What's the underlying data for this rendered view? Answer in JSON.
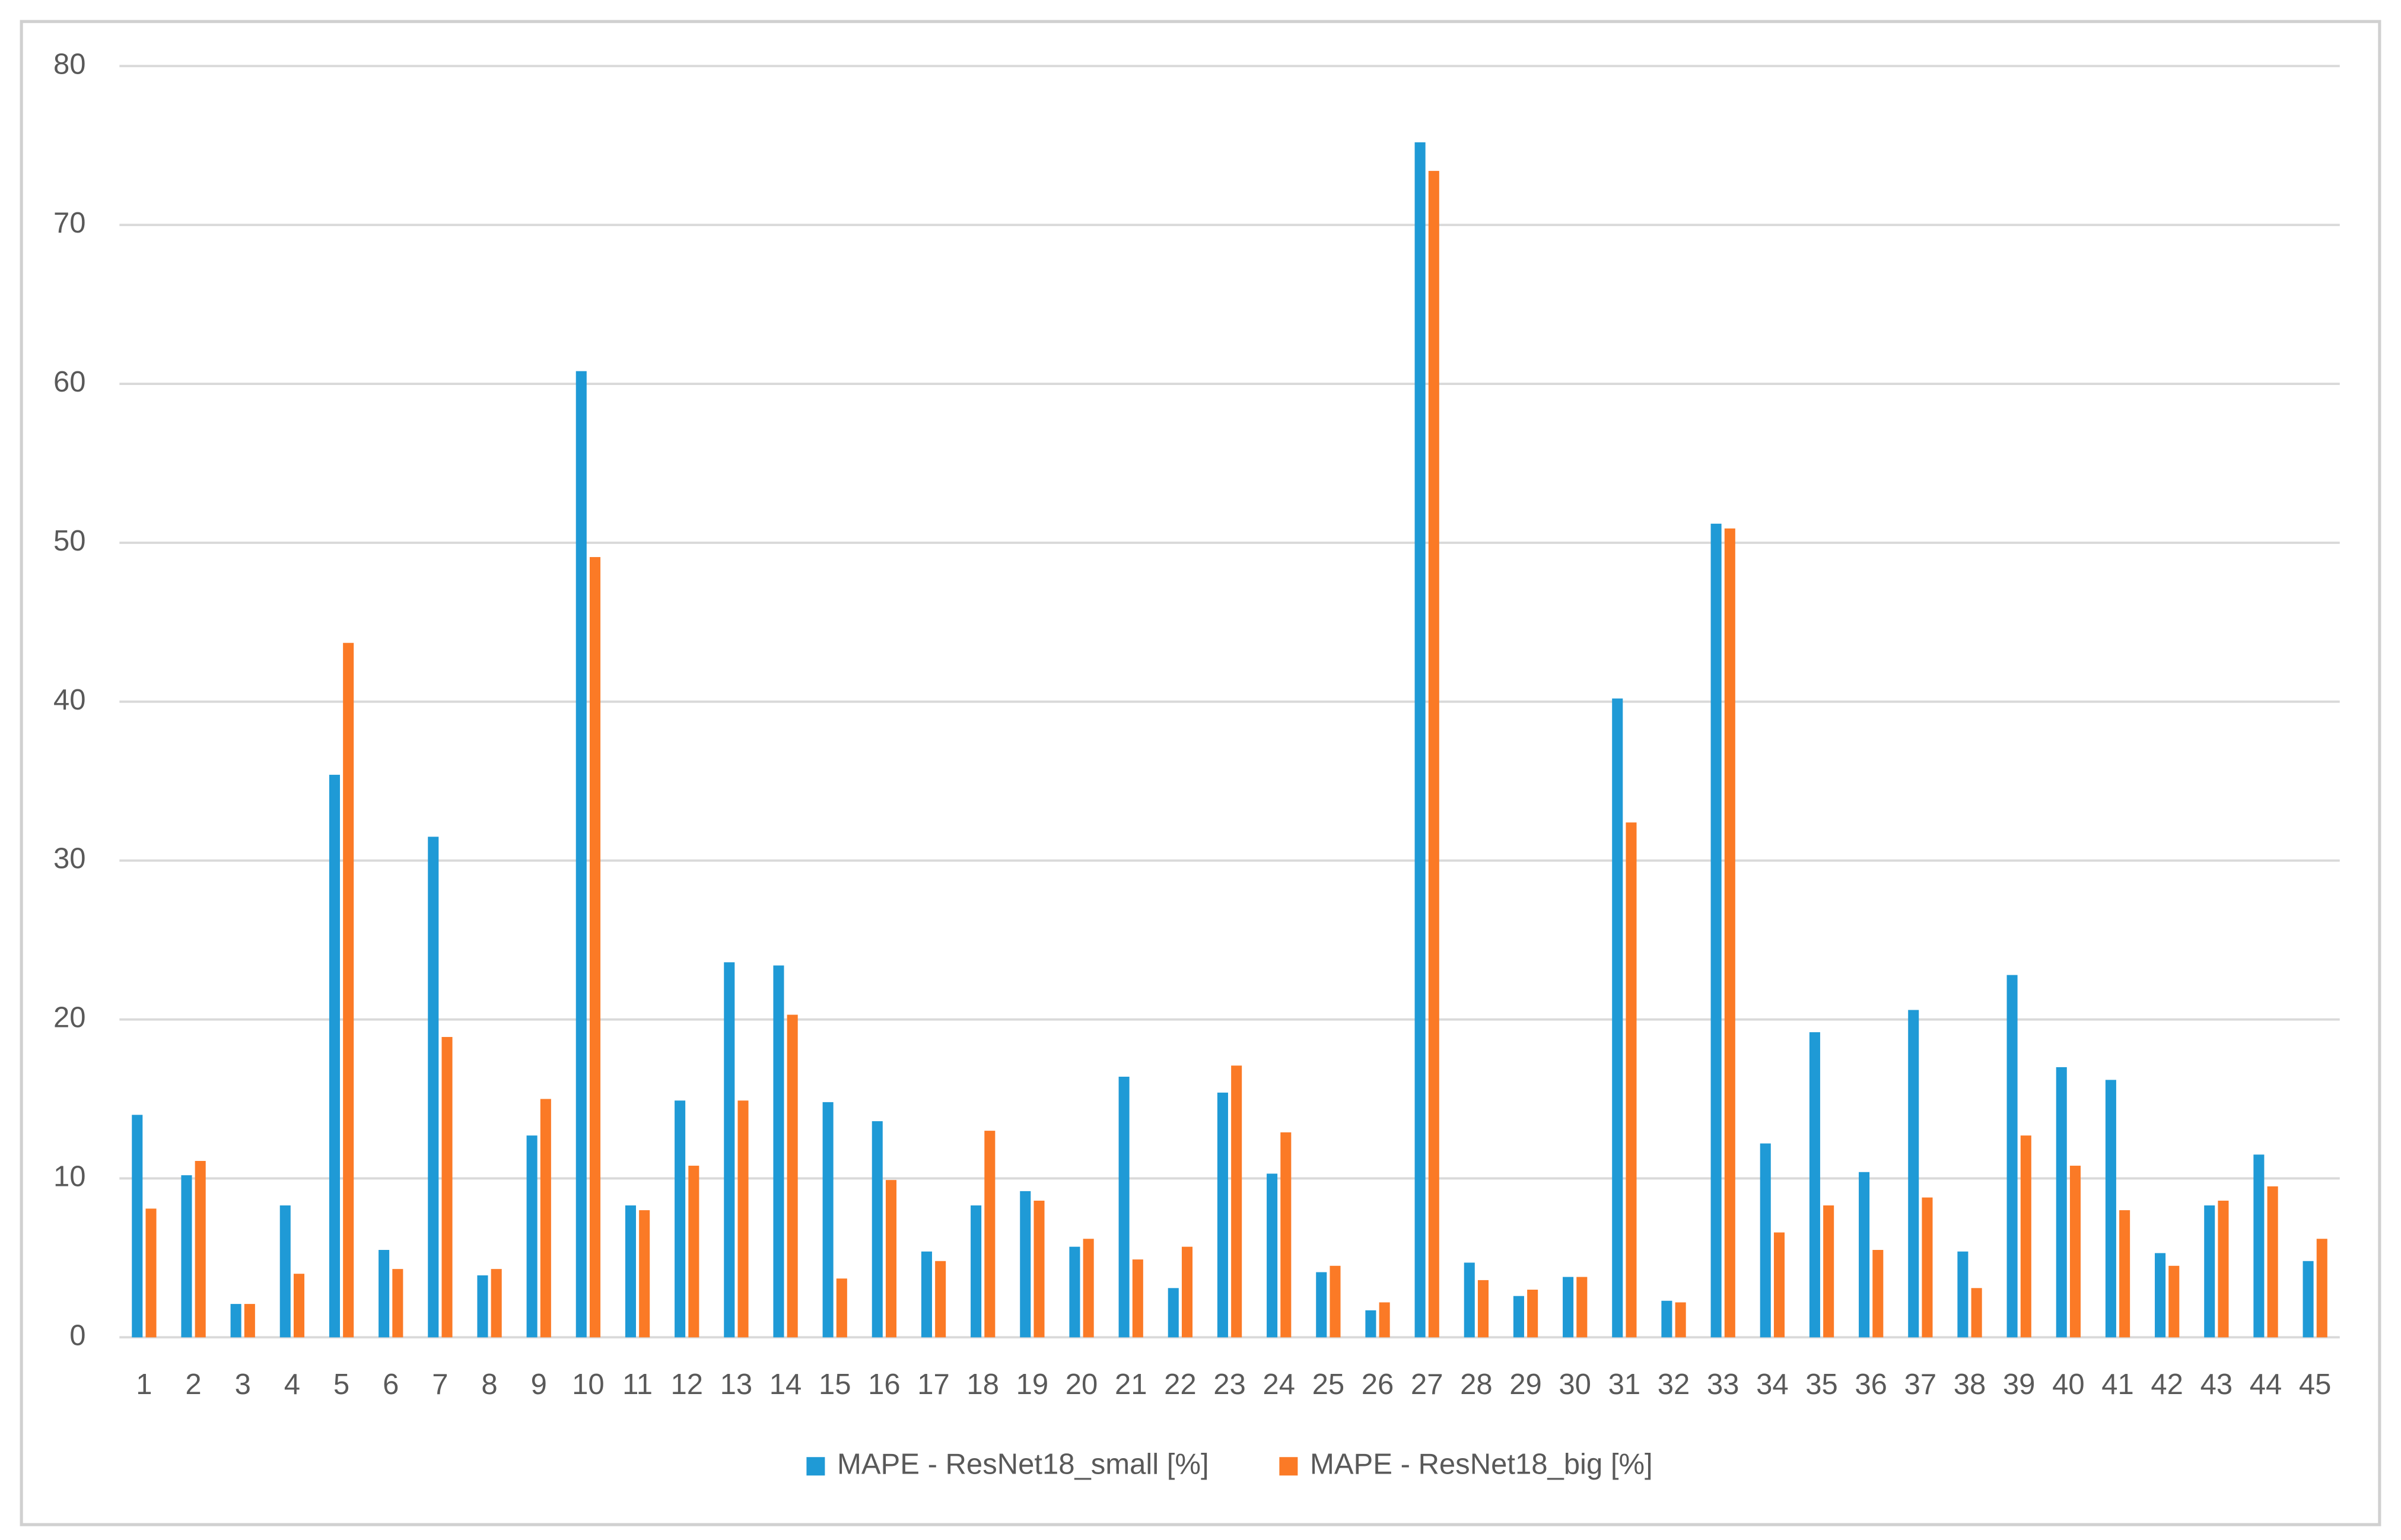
{
  "chart_data": {
    "type": "bar",
    "categories": [
      "1",
      "2",
      "3",
      "4",
      "5",
      "6",
      "7",
      "8",
      "9",
      "10",
      "11",
      "12",
      "13",
      "14",
      "15",
      "16",
      "17",
      "18",
      "19",
      "20",
      "21",
      "22",
      "23",
      "24",
      "25",
      "26",
      "27",
      "28",
      "29",
      "30",
      "31",
      "32",
      "33",
      "34",
      "35",
      "36",
      "37",
      "38",
      "39",
      "40",
      "41",
      "42",
      "43",
      "44",
      "45"
    ],
    "series": [
      {
        "name": "MAPE - ResNet18_small [%]",
        "color": "#1f9ad6",
        "values": [
          14.0,
          10.2,
          2.1,
          8.3,
          35.4,
          5.5,
          31.5,
          3.9,
          12.7,
          60.8,
          8.3,
          14.9,
          23.6,
          23.4,
          14.8,
          13.6,
          5.4,
          8.3,
          9.2,
          5.7,
          16.4,
          3.1,
          15.4,
          10.3,
          4.1,
          1.7,
          75.2,
          4.7,
          2.6,
          3.8,
          40.2,
          2.3,
          51.2,
          12.2,
          19.2,
          10.4,
          20.6,
          5.4,
          22.8,
          17.0,
          16.2,
          5.3,
          8.3,
          11.5,
          4.8
        ]
      },
      {
        "name": "MAPE - ResNet18_big [%]",
        "color": "#fb7a26",
        "values": [
          8.1,
          11.1,
          2.1,
          4.0,
          43.7,
          4.3,
          18.9,
          4.3,
          15.0,
          49.1,
          8.0,
          10.8,
          14.9,
          20.3,
          3.7,
          9.9,
          4.8,
          13.0,
          8.6,
          6.2,
          4.9,
          5.7,
          17.1,
          12.9,
          4.5,
          2.2,
          73.4,
          3.6,
          3.0,
          3.8,
          32.4,
          2.2,
          50.9,
          6.6,
          8.3,
          5.5,
          8.8,
          3.1,
          12.7,
          10.8,
          8.0,
          4.5,
          8.6,
          9.5,
          6.2
        ]
      }
    ],
    "ylim": [
      0,
      80
    ],
    "yticks": [
      0,
      10,
      20,
      30,
      40,
      50,
      60,
      70,
      80
    ],
    "grid": true,
    "legend": "bottom"
  }
}
